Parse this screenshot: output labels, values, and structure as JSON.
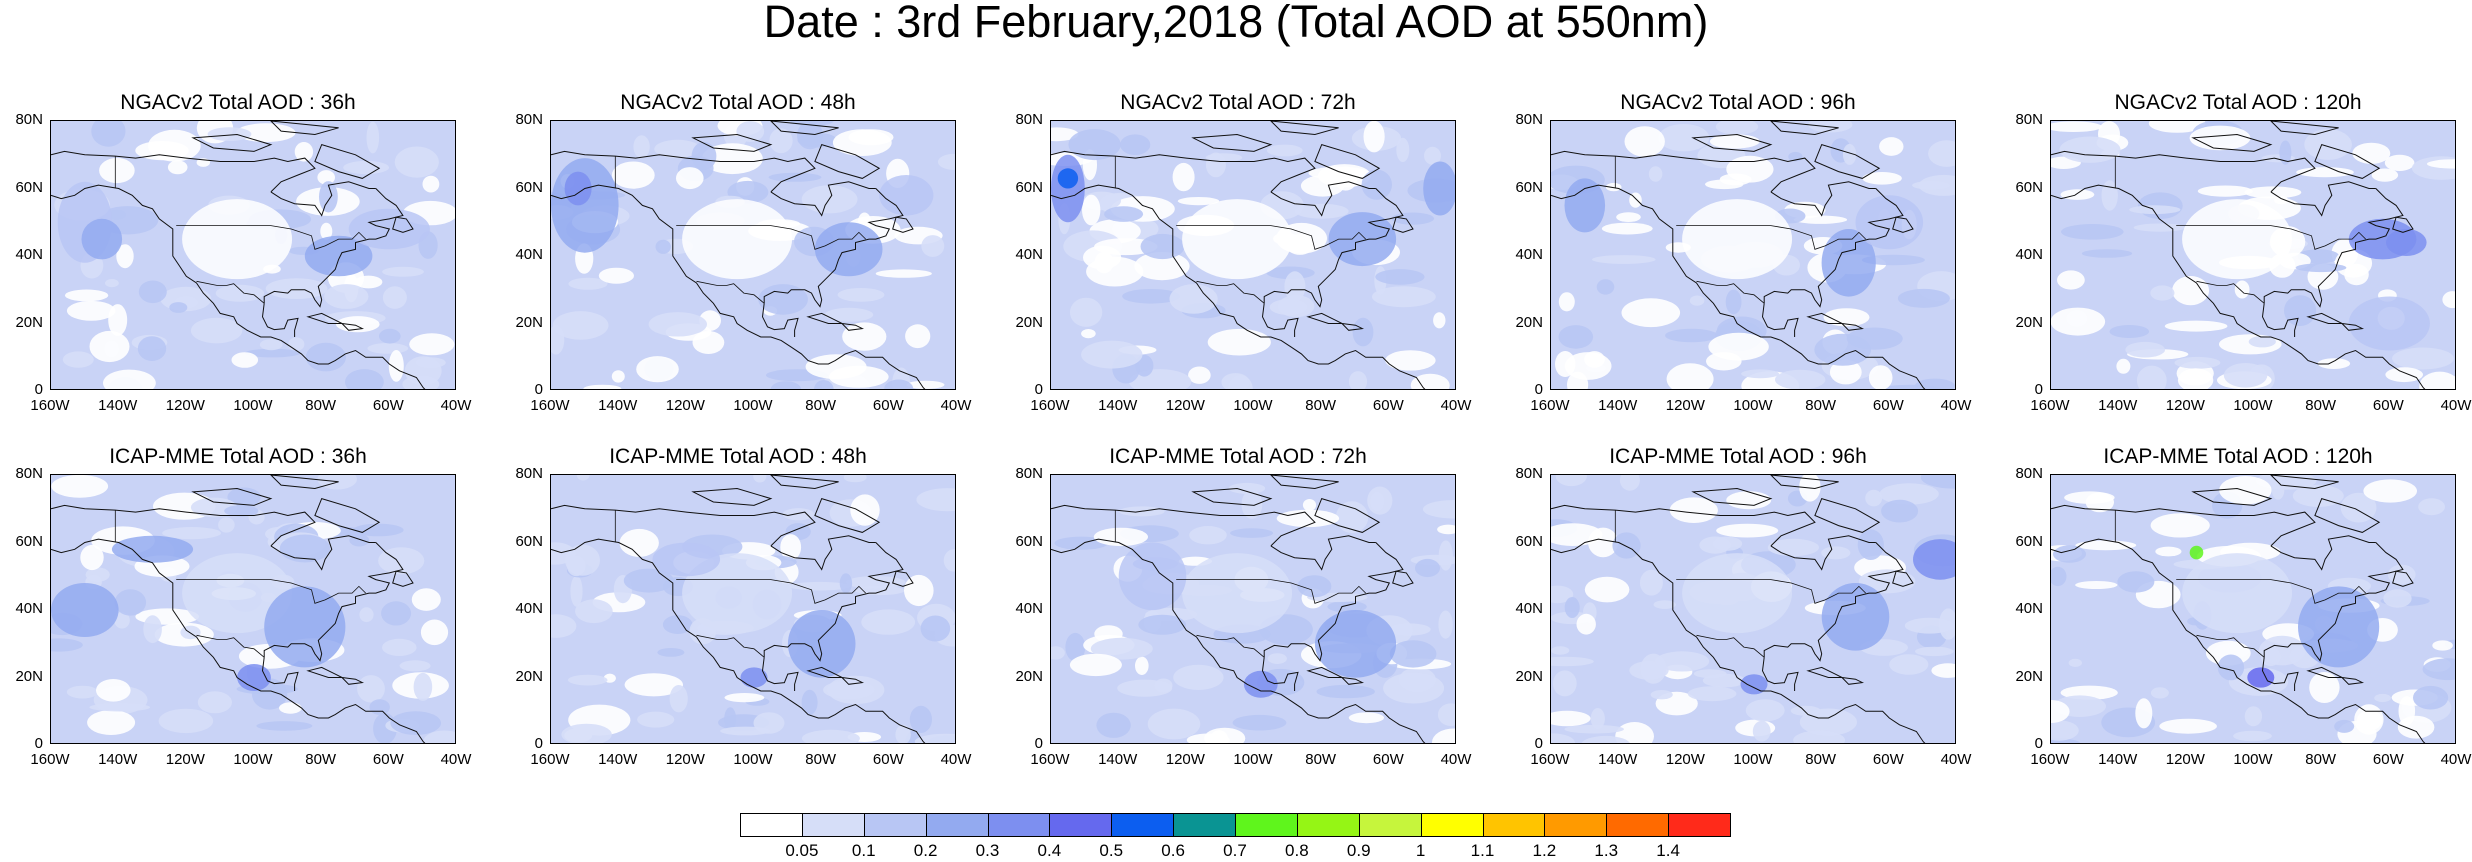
{
  "title": "Date : 3rd February,2018 (Total AOD at 550nm)",
  "panels": [
    {
      "title": "NGACv2 Total AOD : 36h",
      "model": "NGACv2",
      "lead": "36h"
    },
    {
      "title": "NGACv2 Total AOD : 48h",
      "model": "NGACv2",
      "lead": "48h"
    },
    {
      "title": "NGACv2 Total AOD : 72h",
      "model": "NGACv2",
      "lead": "72h"
    },
    {
      "title": "NGACv2 Total AOD : 96h",
      "model": "NGACv2",
      "lead": "96h"
    },
    {
      "title": "NGACv2 Total AOD : 120h",
      "model": "NGACv2",
      "lead": "120h"
    },
    {
      "title": "ICAP-MME Total AOD : 36h",
      "model": "ICAP-MME",
      "lead": "36h"
    },
    {
      "title": "ICAP-MME Total AOD : 48h",
      "model": "ICAP-MME",
      "lead": "48h"
    },
    {
      "title": "ICAP-MME Total AOD : 72h",
      "model": "ICAP-MME",
      "lead": "72h"
    },
    {
      "title": "ICAP-MME Total AOD : 96h",
      "model": "ICAP-MME",
      "lead": "96h"
    },
    {
      "title": "ICAP-MME Total AOD : 120h",
      "model": "ICAP-MME",
      "lead": "120h"
    }
  ],
  "lat_ticks": [
    "80N",
    "60N",
    "40N",
    "20N",
    "0"
  ],
  "lon_ticks": [
    "160W",
    "140W",
    "120W",
    "100W",
    "80W",
    "60W",
    "40W"
  ],
  "extent": {
    "lon": [
      -160,
      -40
    ],
    "lat": [
      0,
      80
    ]
  },
  "colorbar": {
    "colors": [
      "#ffffff",
      "#d6def8",
      "#b8c6f4",
      "#93aaf0",
      "#7d8ff0",
      "#6569ee",
      "#0c5ef0",
      "#0a9493",
      "#5ff51c",
      "#95f515",
      "#c6f53c",
      "#ffff00",
      "#ffc400",
      "#ff9a00",
      "#ff6a00",
      "#ff2a1a"
    ],
    "labels": [
      "0.05",
      "0.1",
      "0.2",
      "0.3",
      "0.4",
      "0.5",
      "0.6",
      "0.7",
      "0.8",
      "0.9",
      "1",
      "1.1",
      "1.2",
      "1.3",
      "1.4"
    ]
  }
}
